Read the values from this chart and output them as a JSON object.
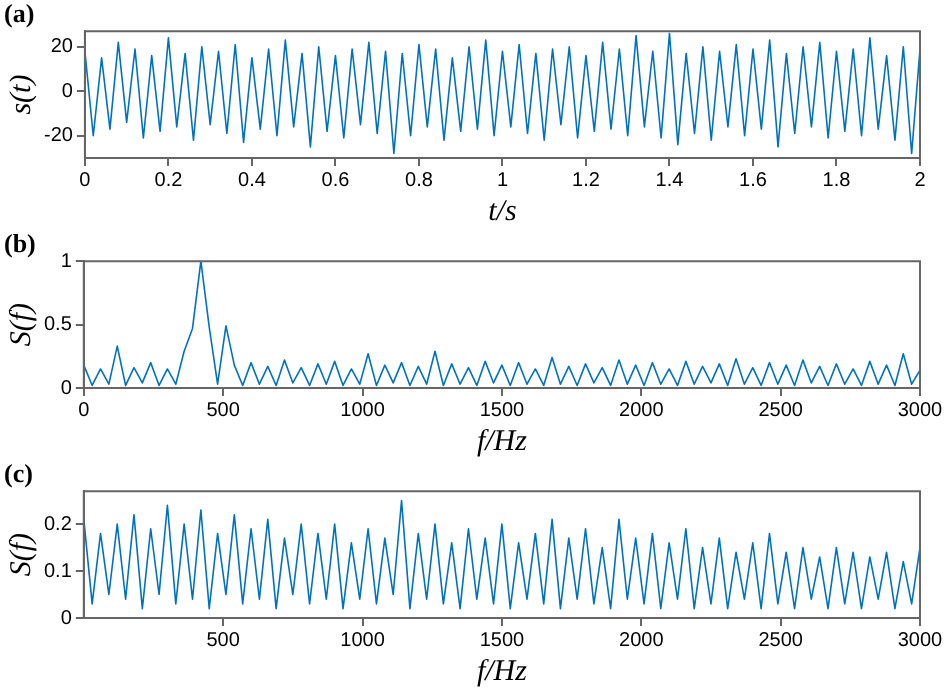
{
  "chart_data": [
    {
      "type": "line",
      "title": "(a)",
      "xlabel": "t/s",
      "ylabel": "s(t)",
      "color": "#0072bd",
      "grid": false,
      "xlim": [
        0,
        2
      ],
      "ylim": [
        -30,
        27
      ],
      "xticks": [
        0,
        0.2,
        0.4,
        0.6,
        0.8,
        1,
        1.2,
        1.4,
        1.6,
        1.8,
        2
      ],
      "yticks": [
        -20,
        0,
        20
      ],
      "x": [
        0,
        0.02,
        0.04,
        0.06,
        0.08,
        0.1,
        0.12,
        0.14,
        0.16,
        0.18,
        0.2,
        0.22,
        0.24,
        0.26,
        0.28,
        0.3,
        0.32,
        0.34,
        0.36,
        0.38,
        0.4,
        0.42,
        0.44,
        0.46,
        0.48,
        0.5,
        0.52,
        0.54,
        0.56,
        0.58,
        0.6,
        0.62,
        0.64,
        0.66,
        0.68,
        0.7,
        0.72,
        0.74,
        0.76,
        0.78,
        0.8,
        0.82,
        0.84,
        0.86,
        0.88,
        0.9,
        0.92,
        0.94,
        0.96,
        0.98,
        1,
        1.02,
        1.04,
        1.06,
        1.08,
        1.1,
        1.12,
        1.14,
        1.16,
        1.18,
        1.2,
        1.22,
        1.24,
        1.26,
        1.28,
        1.3,
        1.32,
        1.34,
        1.36,
        1.38,
        1.4,
        1.42,
        1.44,
        1.46,
        1.48,
        1.5,
        1.52,
        1.54,
        1.56,
        1.58,
        1.6,
        1.62,
        1.64,
        1.66,
        1.68,
        1.7,
        1.72,
        1.74,
        1.76,
        1.78,
        1.8,
        1.82,
        1.84,
        1.86,
        1.88,
        1.9,
        1.92,
        1.94,
        1.96,
        1.98,
        2
      ],
      "values": [
        18,
        -20,
        15,
        -17,
        22,
        -14,
        19,
        -21,
        16,
        -18,
        24,
        -16,
        17,
        -22,
        20,
        -15,
        18,
        -19,
        21,
        -23,
        15,
        -17,
        19,
        -20,
        23,
        -16,
        17,
        -25,
        20,
        -18,
        16,
        -21,
        19,
        -15,
        22,
        -19,
        18,
        -28,
        17,
        -20,
        21,
        -16,
        19,
        -22,
        15,
        -18,
        20,
        -17,
        23,
        -20,
        18,
        -16,
        21,
        -19,
        17,
        -22,
        19,
        -15,
        20,
        -21,
        16,
        -18,
        22,
        -17,
        19,
        -20,
        25,
        -16,
        18,
        -21,
        26,
        -24,
        17,
        -19,
        20,
        -22,
        18,
        -16,
        21,
        -20,
        19,
        -17,
        23,
        -25,
        17,
        -19,
        20,
        -16,
        22,
        -21,
        18,
        -18,
        19,
        -20,
        24,
        -17,
        16,
        -22,
        20,
        -28,
        19
      ]
    },
    {
      "type": "line",
      "title": "(b)",
      "xlabel": "f/Hz",
      "ylabel": "S(f)",
      "color": "#0072bd",
      "grid": false,
      "xlim": [
        0,
        3000
      ],
      "ylim": [
        0,
        1
      ],
      "xticks": [
        0,
        500,
        1000,
        1500,
        2000,
        2500,
        3000
      ],
      "yticks": [
        0,
        0.5,
        1
      ],
      "x": [
        0,
        30,
        60,
        90,
        120,
        150,
        180,
        210,
        240,
        270,
        300,
        330,
        360,
        390,
        420,
        450,
        480,
        510,
        540,
        570,
        600,
        630,
        660,
        690,
        720,
        750,
        780,
        810,
        840,
        870,
        900,
        930,
        960,
        990,
        1020,
        1050,
        1080,
        1110,
        1140,
        1170,
        1200,
        1230,
        1260,
        1290,
        1320,
        1350,
        1380,
        1410,
        1440,
        1470,
        1500,
        1530,
        1560,
        1590,
        1620,
        1650,
        1680,
        1710,
        1740,
        1770,
        1800,
        1830,
        1860,
        1890,
        1920,
        1950,
        1980,
        2010,
        2040,
        2070,
        2100,
        2130,
        2160,
        2190,
        2220,
        2250,
        2280,
        2310,
        2340,
        2370,
        2400,
        2430,
        2460,
        2490,
        2520,
        2550,
        2580,
        2610,
        2640,
        2670,
        2700,
        2730,
        2760,
        2790,
        2820,
        2850,
        2880,
        2910,
        2940,
        2970,
        3000
      ],
      "values": [
        0.18,
        0.02,
        0.15,
        0.03,
        0.33,
        0.02,
        0.16,
        0.04,
        0.2,
        0.02,
        0.15,
        0.03,
        0.29,
        0.47,
        1,
        0.48,
        0.03,
        0.49,
        0.18,
        0.02,
        0.2,
        0.03,
        0.17,
        0.02,
        0.22,
        0.04,
        0.16,
        0.02,
        0.19,
        0.03,
        0.21,
        0.02,
        0.15,
        0.03,
        0.27,
        0.02,
        0.18,
        0.04,
        0.2,
        0.02,
        0.17,
        0.03,
        0.29,
        0.02,
        0.19,
        0.03,
        0.16,
        0.02,
        0.21,
        0.04,
        0.18,
        0.02,
        0.2,
        0.03,
        0.15,
        0.02,
        0.24,
        0.03,
        0.17,
        0.02,
        0.19,
        0.04,
        0.16,
        0.02,
        0.22,
        0.03,
        0.18,
        0.02,
        0.2,
        0.03,
        0.15,
        0.02,
        0.21,
        0.03,
        0.17,
        0.04,
        0.19,
        0.02,
        0.23,
        0.03,
        0.16,
        0.02,
        0.2,
        0.03,
        0.18,
        0.02,
        0.22,
        0.04,
        0.17,
        0.02,
        0.19,
        0.03,
        0.15,
        0.02,
        0.21,
        0.03,
        0.18,
        0.02,
        0.27,
        0.03,
        0.14
      ]
    },
    {
      "type": "line",
      "title": "(c)",
      "xlabel": "f/Hz",
      "ylabel": "S(f)",
      "color": "#0072bd",
      "grid": false,
      "xlim": [
        0,
        3000
      ],
      "ylim": [
        0,
        0.27
      ],
      "xticks": [
        500,
        1000,
        1500,
        2000,
        2500,
        3000
      ],
      "yticks": [
        0,
        0.1,
        0.2
      ],
      "x": [
        0,
        30,
        60,
        90,
        120,
        150,
        180,
        210,
        240,
        270,
        300,
        330,
        360,
        390,
        420,
        450,
        480,
        510,
        540,
        570,
        600,
        630,
        660,
        690,
        720,
        750,
        780,
        810,
        840,
        870,
        900,
        930,
        960,
        990,
        1020,
        1050,
        1080,
        1110,
        1140,
        1170,
        1200,
        1230,
        1260,
        1290,
        1320,
        1350,
        1380,
        1410,
        1440,
        1470,
        1500,
        1530,
        1560,
        1590,
        1620,
        1650,
        1680,
        1710,
        1740,
        1770,
        1800,
        1830,
        1860,
        1890,
        1920,
        1950,
        1980,
        2010,
        2040,
        2070,
        2100,
        2130,
        2160,
        2190,
        2220,
        2250,
        2280,
        2310,
        2340,
        2370,
        2400,
        2430,
        2460,
        2490,
        2520,
        2550,
        2580,
        2610,
        2640,
        2670,
        2700,
        2730,
        2760,
        2790,
        2820,
        2850,
        2880,
        2910,
        2940,
        2970,
        3000
      ],
      "values": [
        0.21,
        0.03,
        0.18,
        0.05,
        0.2,
        0.04,
        0.22,
        0.02,
        0.19,
        0.05,
        0.24,
        0.03,
        0.2,
        0.04,
        0.23,
        0.02,
        0.18,
        0.05,
        0.22,
        0.03,
        0.19,
        0.04,
        0.21,
        0.02,
        0.17,
        0.05,
        0.2,
        0.03,
        0.18,
        0.04,
        0.2,
        0.02,
        0.16,
        0.04,
        0.19,
        0.03,
        0.17,
        0.05,
        0.25,
        0.02,
        0.18,
        0.04,
        0.2,
        0.03,
        0.16,
        0.02,
        0.19,
        0.04,
        0.17,
        0.03,
        0.2,
        0.02,
        0.16,
        0.04,
        0.18,
        0.03,
        0.21,
        0.02,
        0.17,
        0.04,
        0.19,
        0.03,
        0.15,
        0.02,
        0.21,
        0.04,
        0.17,
        0.03,
        0.18,
        0.02,
        0.16,
        0.04,
        0.19,
        0.02,
        0.15,
        0.03,
        0.17,
        0.02,
        0.14,
        0.04,
        0.16,
        0.02,
        0.18,
        0.03,
        0.14,
        0.02,
        0.15,
        0.04,
        0.13,
        0.02,
        0.15,
        0.03,
        0.14,
        0.02,
        0.13,
        0.04,
        0.14,
        0.02,
        0.12,
        0.03,
        0.15
      ]
    }
  ]
}
